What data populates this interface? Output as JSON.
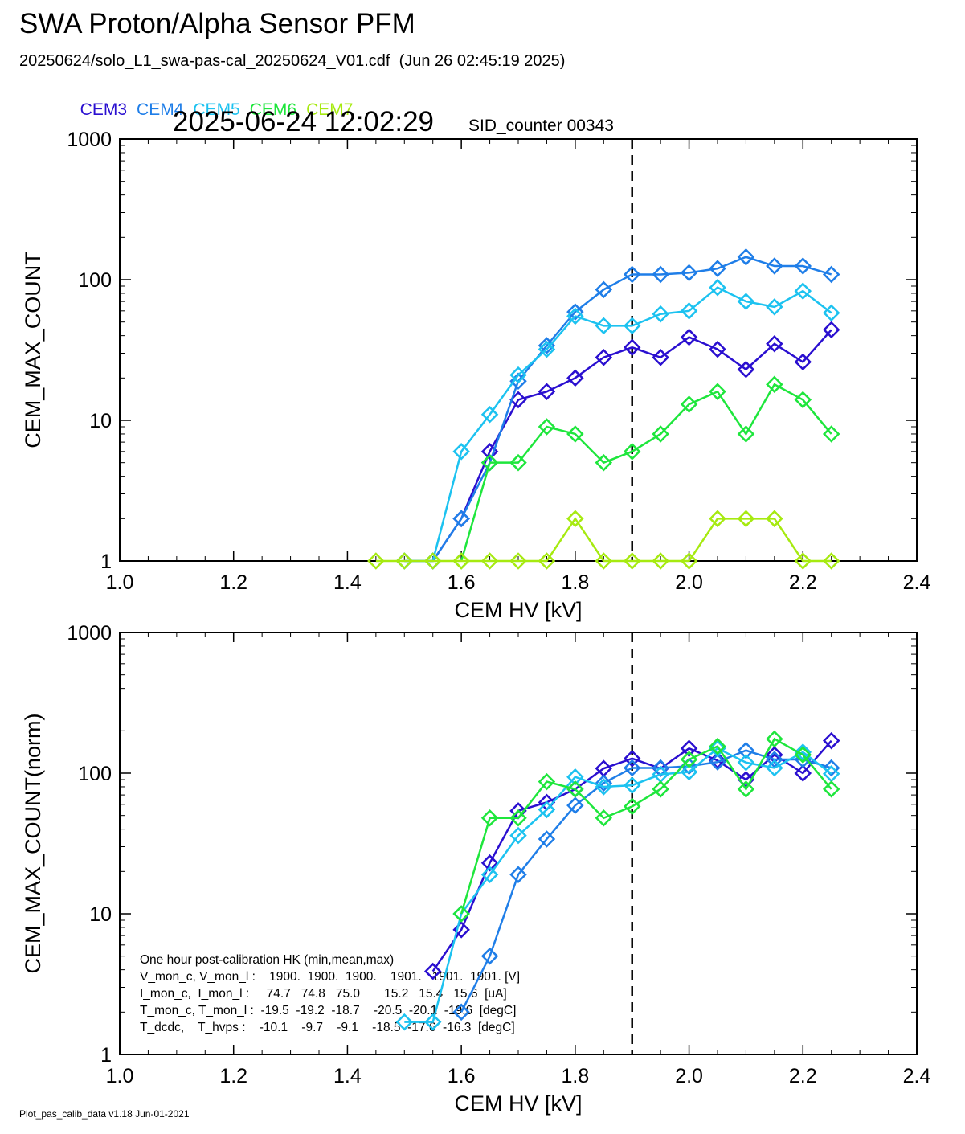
{
  "header": {
    "title": "SWA Proton/Alpha Sensor PFM",
    "subtitle": "20250624/solo_L1_swa-pas-cal_20250624_V01.cdf  (Jun 26 02:45:19 2025)",
    "datetime": "2025-06-24 12:02:29",
    "sid": "SID_counter 00343"
  },
  "legend": [
    {
      "name": "CEM3",
      "color": "#2a0fd0"
    },
    {
      "name": "CEM4",
      "color": "#1f7ee8"
    },
    {
      "name": "CEM5",
      "color": "#1cc2f0"
    },
    {
      "name": "CEM6",
      "color": "#1ee63c"
    },
    {
      "name": "CEM7",
      "color": "#a6ea10"
    }
  ],
  "footer": "Plot_pas_calib_data v1.18 Jun-01-2021",
  "chart_data": [
    {
      "type": "line",
      "xlabel": "CEM HV [kV]",
      "ylabel": "CEM_MAX_COUNT",
      "xlim": [
        1.0,
        2.4
      ],
      "ylim": [
        1,
        1000
      ],
      "yscale": "log",
      "xticks": [
        "1.0",
        "1.2",
        "1.4",
        "1.6",
        "1.8",
        "2.0",
        "2.2",
        "2.4"
      ],
      "yticks": [
        "1",
        "10",
        "100",
        "1000"
      ],
      "vline": 1.9,
      "series": [
        {
          "name": "CEM3",
          "color": "#2a0fd0",
          "x": [
            1.55,
            1.6,
            1.65,
            1.7,
            1.75,
            1.8,
            1.85,
            1.9,
            1.95,
            2.0,
            2.05,
            2.1,
            2.15,
            2.2,
            2.25
          ],
          "y": [
            1,
            2,
            6,
            14,
            16,
            20,
            28,
            33,
            28,
            39,
            32,
            23,
            35,
            26,
            44
          ]
        },
        {
          "name": "CEM4",
          "color": "#1f7ee8",
          "x": [
            1.5,
            1.55,
            1.6,
            1.65,
            1.7,
            1.75,
            1.8,
            1.85,
            1.9,
            1.95,
            2.0,
            2.05,
            2.1,
            2.15,
            2.2,
            2.25
          ],
          "y": [
            1,
            1,
            2,
            5,
            19,
            34,
            59,
            85,
            109,
            109,
            112,
            120,
            145,
            125,
            125,
            109
          ]
        },
        {
          "name": "CEM5",
          "color": "#1cc2f0",
          "x": [
            1.5,
            1.55,
            1.6,
            1.65,
            1.7,
            1.75,
            1.8,
            1.85,
            1.9,
            1.95,
            2.0,
            2.05,
            2.1,
            2.15,
            2.2,
            2.25
          ],
          "y": [
            1,
            1,
            6,
            11,
            21,
            32,
            55,
            47,
            47,
            57,
            60,
            88,
            70,
            64,
            83,
            58
          ]
        },
        {
          "name": "CEM6",
          "color": "#1ee63c",
          "x": [
            1.6,
            1.65,
            1.7,
            1.75,
            1.8,
            1.85,
            1.9,
            1.95,
            2.0,
            2.05,
            2.1,
            2.15,
            2.2,
            2.25
          ],
          "y": [
            1,
            5,
            5,
            9,
            8,
            5,
            6,
            8,
            13,
            16,
            8,
            18,
            14,
            8
          ]
        },
        {
          "name": "CEM7",
          "color": "#a6ea10",
          "x": [
            1.45,
            1.5,
            1.55,
            1.6,
            1.65,
            1.7,
            1.75,
            1.8,
            1.85,
            1.9,
            1.95,
            2.0,
            2.05,
            2.1,
            2.15,
            2.2,
            2.25
          ],
          "y": [
            1,
            1,
            1,
            1,
            1,
            1,
            1,
            2,
            1,
            1,
            1,
            1,
            2,
            2,
            2,
            1,
            1
          ]
        }
      ]
    },
    {
      "type": "line",
      "xlabel": "CEM HV [kV]",
      "ylabel": "CEM_MAX_COUNT(norm)",
      "xlim": [
        1.0,
        2.4
      ],
      "ylim": [
        1,
        1000
      ],
      "yscale": "log",
      "xticks": [
        "1.0",
        "1.2",
        "1.4",
        "1.6",
        "1.8",
        "2.0",
        "2.2",
        "2.4"
      ],
      "yticks": [
        "1",
        "10",
        "100",
        "1000"
      ],
      "vline": 1.9,
      "series": [
        {
          "name": "CEM3",
          "color": "#2a0fd0",
          "x": [
            1.55,
            1.6,
            1.65,
            1.7,
            1.75,
            1.8,
            1.85,
            1.9,
            1.95,
            2.0,
            2.05,
            2.1,
            2.15,
            2.2,
            2.25
          ],
          "y": [
            3.9,
            7.7,
            23,
            54,
            62,
            77,
            108,
            127,
            108,
            150,
            123,
            90,
            135,
            100,
            170
          ]
        },
        {
          "name": "CEM4",
          "color": "#1f7ee8",
          "x": [
            1.6,
            1.65,
            1.7,
            1.75,
            1.8,
            1.85,
            1.9,
            1.95,
            2.0,
            2.05,
            2.1,
            2.15,
            2.2,
            2.25
          ],
          "y": [
            2,
            5,
            19,
            34,
            59,
            85,
            109,
            109,
            112,
            120,
            145,
            125,
            125,
            109
          ]
        },
        {
          "name": "CEM5",
          "color": "#1cc2f0",
          "x": [
            1.5,
            1.55,
            1.6,
            1.65,
            1.7,
            1.75,
            1.8,
            1.85,
            1.9,
            1.95,
            2.0,
            2.05,
            2.1,
            2.15,
            2.2,
            2.25
          ],
          "y": [
            1.7,
            1.7,
            10,
            19,
            36,
            55,
            94,
            80,
            82,
            98,
            102,
            150,
            119,
            109,
            141,
            99
          ]
        },
        {
          "name": "CEM6",
          "color": "#1ee63c",
          "x": [
            1.6,
            1.65,
            1.7,
            1.75,
            1.8,
            1.85,
            1.9,
            1.95,
            2.0,
            2.05,
            2.1,
            2.15,
            2.2,
            2.25
          ],
          "y": [
            10,
            48,
            48,
            87,
            77,
            48,
            58,
            77,
            125,
            155,
            77,
            175,
            135,
            77
          ]
        }
      ],
      "annotation": {
        "title": "One hour post-calibration HK (min,mean,max)",
        "rows": [
          "V_mon_c, V_mon_l :    1900.  1900.  1900.    1901.   1901.  1901. [V]",
          "I_mon_c,  I_mon_l :     74.7   74.8   75.0       15.2   15.4   15.6  [uA]",
          "T_mon_c, T_mon_l :  -19.5  -19.2  -18.7    -20.5  -20.1  -19.6  [degC]",
          "T_dcdc,    T_hvps :    -10.1    -9.7    -9.1    -18.5  -17.6  -16.3  [degC]"
        ]
      }
    }
  ]
}
